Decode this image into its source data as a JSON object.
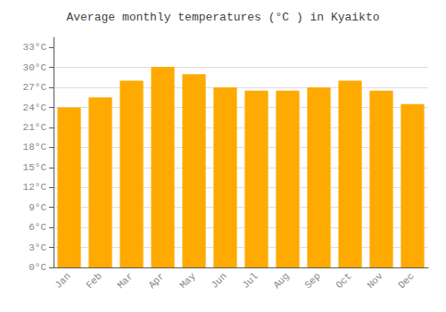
{
  "chart_data": {
    "type": "bar",
    "title": "Average monthly temperatures (°C ) in Kyaikto",
    "categories": [
      "Jan",
      "Feb",
      "Mar",
      "Apr",
      "May",
      "Jun",
      "Jul",
      "Aug",
      "Sep",
      "Oct",
      "Nov",
      "Dec"
    ],
    "values": [
      24,
      25.5,
      28,
      30.1,
      29,
      27,
      26.5,
      26.5,
      27,
      28,
      26.5,
      24.5
    ],
    "color": "#FFAA00",
    "ylim": [
      0,
      34.5
    ],
    "yticks": [
      {
        "value": 0,
        "label": "0°C"
      },
      {
        "value": 3,
        "label": "3°C"
      },
      {
        "value": 6,
        "label": "6°C"
      },
      {
        "value": 9,
        "label": "9°C"
      },
      {
        "value": 12,
        "label": "12°C"
      },
      {
        "value": 15,
        "label": "15°C"
      },
      {
        "value": 18,
        "label": "18°C"
      },
      {
        "value": 21,
        "label": "21°C"
      },
      {
        "value": 24,
        "label": "24°C"
      },
      {
        "value": 27,
        "label": "27°C"
      },
      {
        "value": 30,
        "label": "30°C"
      },
      {
        "value": 33,
        "label": "33°C"
      }
    ],
    "grid": true
  }
}
